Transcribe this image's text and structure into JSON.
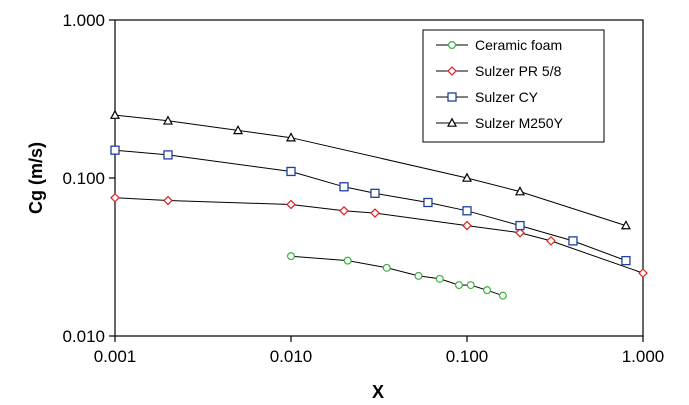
{
  "chart_data": {
    "type": "line",
    "title": "",
    "xlabel": "X",
    "ylabel": "Cg (m/s)",
    "x_scale": "log",
    "y_scale": "log",
    "xlim": [
      0.001,
      1.0
    ],
    "ylim": [
      0.01,
      1.0
    ],
    "x_ticks": [
      "0.001",
      "0.010",
      "0.100",
      "1.000"
    ],
    "y_ticks": [
      "0.010",
      "0.100",
      "1.000"
    ],
    "grid": false,
    "legend_position": "top-right",
    "series": [
      {
        "name": "Ceramic foam",
        "marker": "circle",
        "color": "#3cb043",
        "x": [
          0.01,
          0.021,
          0.035,
          0.053,
          0.07,
          0.09,
          0.105,
          0.13,
          0.16
        ],
        "y": [
          0.032,
          0.03,
          0.027,
          0.024,
          0.023,
          0.021,
          0.021,
          0.0195,
          0.018
        ]
      },
      {
        "name": "Sulzer PR 5/8",
        "marker": "diamond",
        "color": "#e41a1c",
        "x": [
          0.001,
          0.002,
          0.01,
          0.02,
          0.03,
          0.1,
          0.2,
          0.3,
          1.0
        ],
        "y": [
          0.075,
          0.072,
          0.068,
          0.062,
          0.06,
          0.05,
          0.045,
          0.04,
          0.025
        ]
      },
      {
        "name": "Sulzer CY",
        "marker": "square",
        "color": "#1f3f9f",
        "x": [
          0.001,
          0.002,
          0.01,
          0.02,
          0.03,
          0.06,
          0.1,
          0.2,
          0.4,
          0.8
        ],
        "y": [
          0.15,
          0.14,
          0.11,
          0.088,
          0.08,
          0.07,
          0.062,
          0.05,
          0.04,
          0.03
        ]
      },
      {
        "name": "Sulzer M250Y",
        "marker": "triangle",
        "color": "#000000",
        "x": [
          0.001,
          0.002,
          0.005,
          0.01,
          0.1,
          0.2,
          0.8
        ],
        "y": [
          0.25,
          0.23,
          0.2,
          0.18,
          0.1,
          0.082,
          0.05
        ]
      }
    ]
  }
}
